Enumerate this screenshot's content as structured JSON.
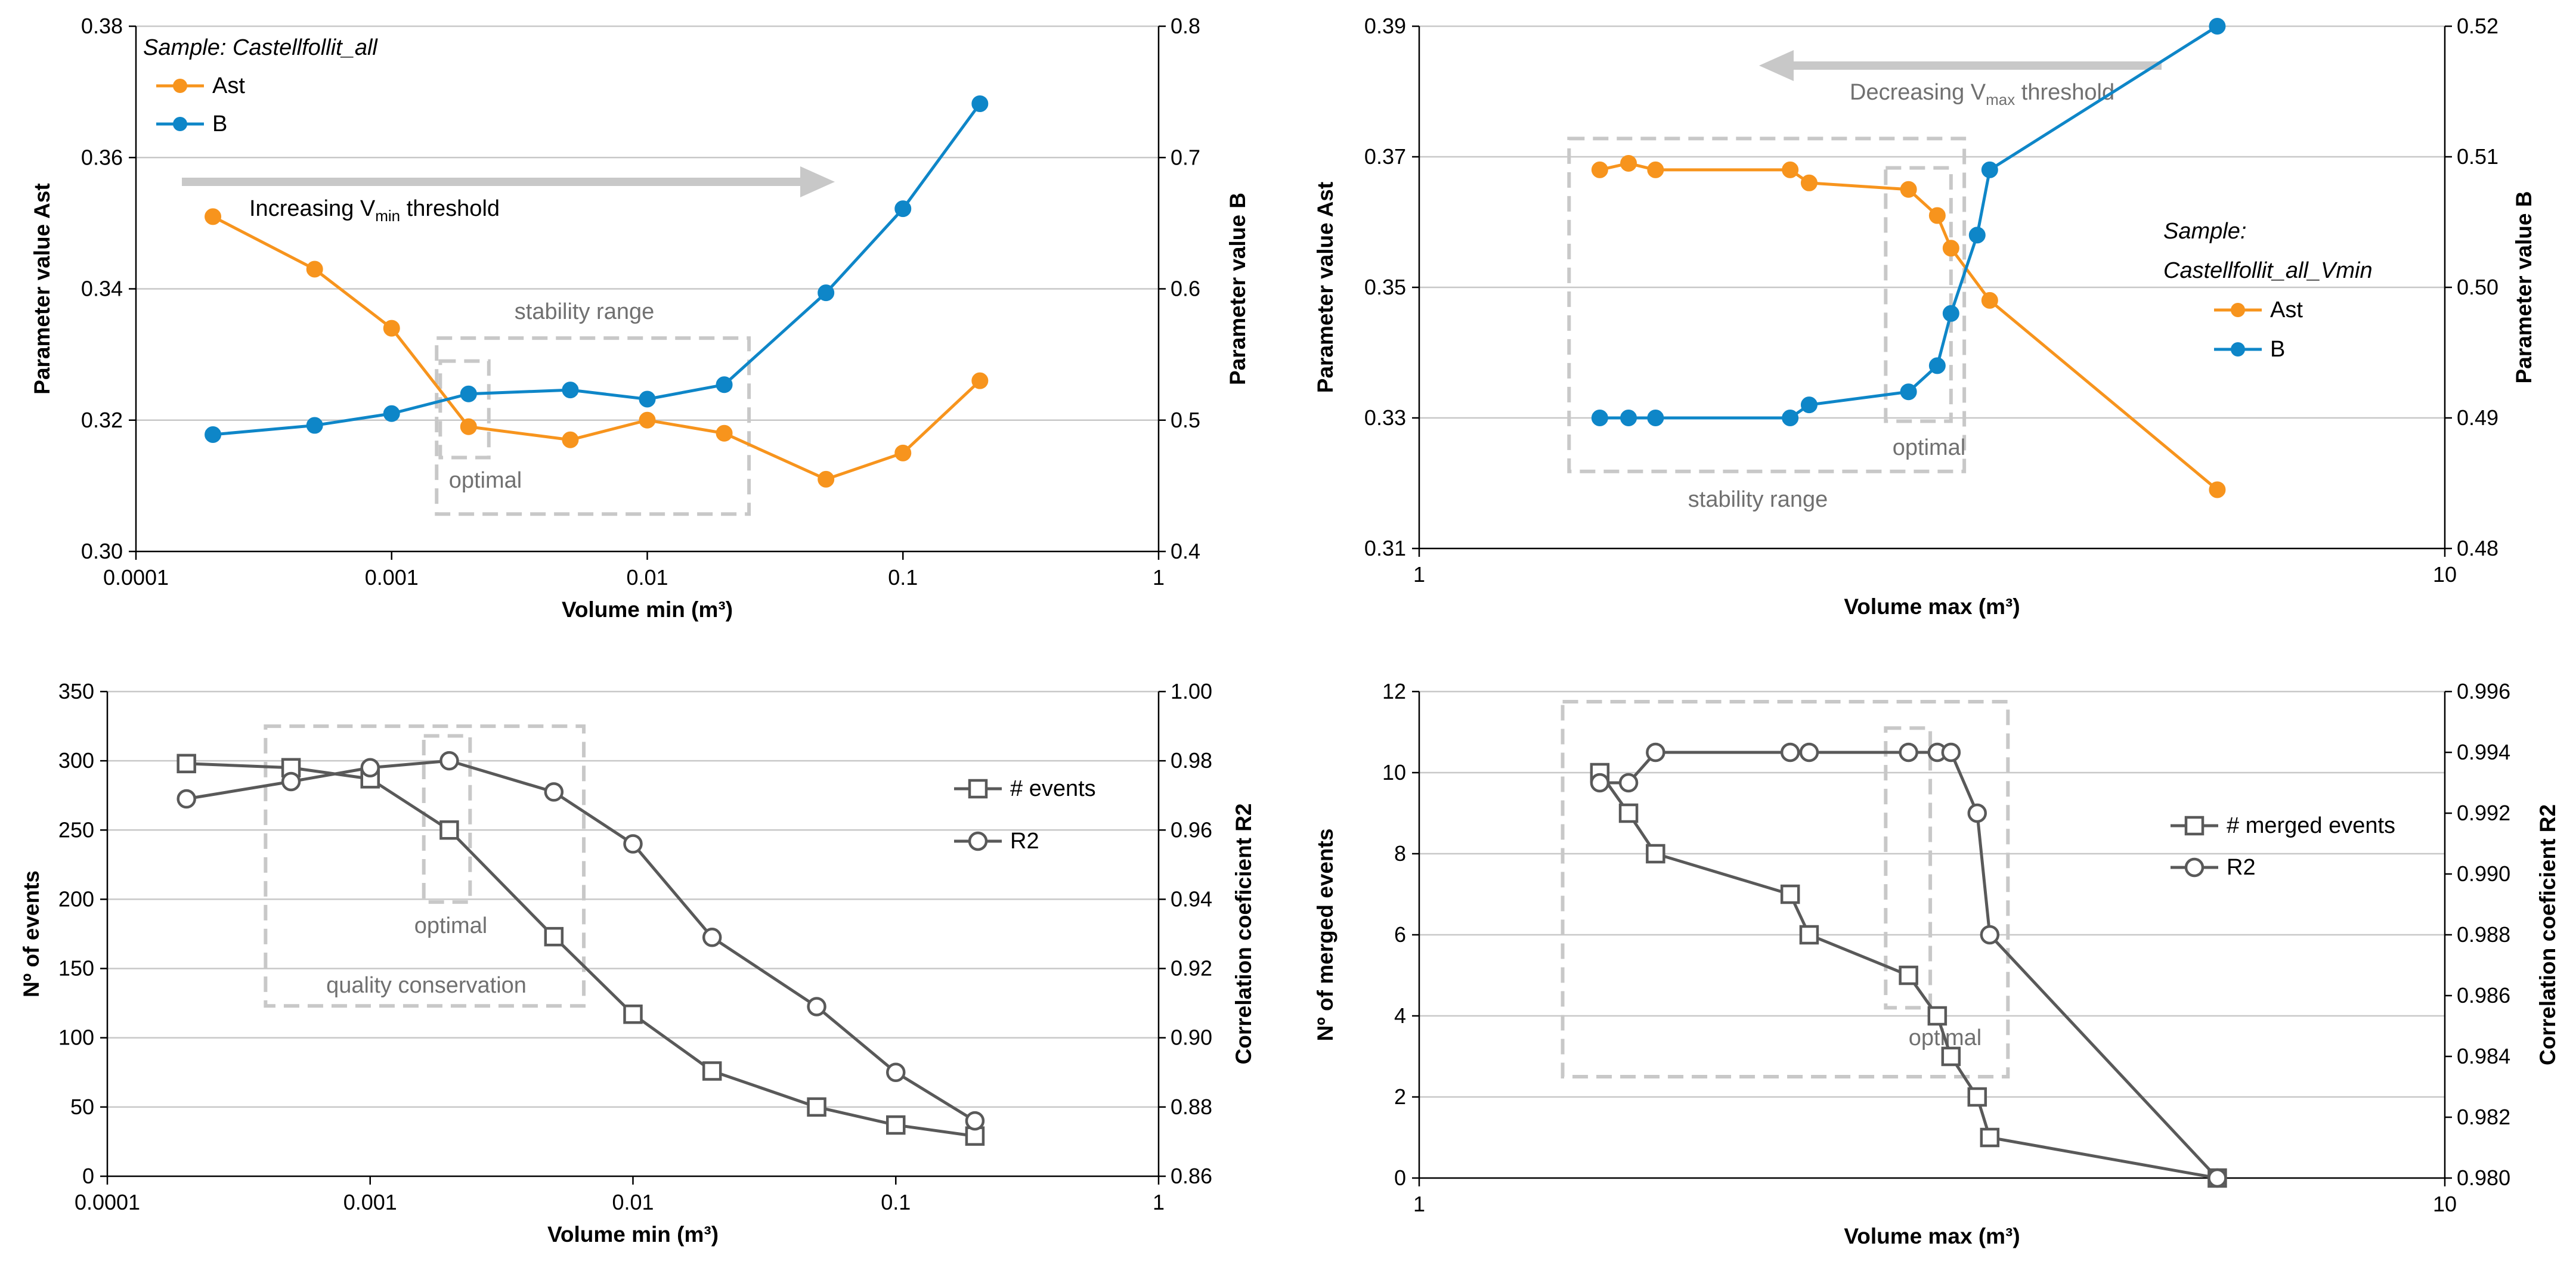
{
  "colors": {
    "ast": "#F7941D",
    "b": "#0E86C8",
    "gray_series": "#595959",
    "gridline": "#C8C8C8",
    "axis": "#000000",
    "annotation_box": "#C8C8C8",
    "annotation_text": "#707070",
    "arrow": "#C8C8C8"
  },
  "chart_data": [
    {
      "id": "top-left",
      "type": "line",
      "x_scale": "log",
      "xlim": [
        0.0001,
        1
      ],
      "x_ticks": [
        0.0001,
        0.001,
        0.01,
        0.1,
        1
      ],
      "x_tick_labels": [
        "0.0001",
        "0.001",
        "0.01",
        "0.1",
        "1"
      ],
      "xlabel": "Volume min (m³)",
      "y_left": {
        "label": "Parameter value Ast",
        "lim": [
          0.3,
          0.38
        ],
        "ticks": [
          0.3,
          0.32,
          0.34,
          0.36,
          0.38
        ],
        "tick_labels": [
          "0.30",
          "0.32",
          "0.34",
          "0.36",
          "0.38"
        ]
      },
      "y_right": {
        "label": "Parameter value B",
        "lim": [
          0.4,
          0.8
        ],
        "ticks": [
          0.4,
          0.5,
          0.6,
          0.7,
          0.8
        ],
        "tick_labels": [
          "0.4",
          "0.5",
          "0.6",
          "0.7",
          "0.8"
        ]
      },
      "gridlines": true,
      "series": [
        {
          "name": "Ast",
          "axis": "left",
          "color": "ast",
          "marker": "filled-circle",
          "x": [
            0.0002,
            0.0005,
            0.001,
            0.002,
            0.005,
            0.01,
            0.02,
            0.05,
            0.1,
            0.2
          ],
          "y": [
            0.351,
            0.343,
            0.334,
            0.319,
            0.317,
            0.32,
            0.318,
            0.311,
            0.315,
            0.326
          ]
        },
        {
          "name": "B",
          "axis": "right",
          "color": "b",
          "marker": "filled-circle",
          "x": [
            0.0002,
            0.0005,
            0.001,
            0.002,
            0.005,
            0.01,
            0.02,
            0.05,
            0.1,
            0.2
          ],
          "y": [
            0.489,
            0.496,
            0.505,
            0.52,
            0.523,
            0.516,
            0.527,
            0.597,
            0.661,
            0.741
          ]
        }
      ],
      "legend": {
        "title": "Sample: Castellfollit_all",
        "placement": "top-left",
        "entries": [
          "Ast",
          "B"
        ]
      },
      "annotations": {
        "arrow": {
          "direction": "right",
          "text_pre": "Increasing V",
          "text_sub": "min",
          "text_post": " threshold"
        },
        "big_box": {
          "label": "stability range",
          "x_range": [
            0.0015,
            0.025
          ],
          "y_range": [
            0.3057,
            0.3325
          ]
        },
        "small_box": {
          "label": "optimal",
          "x_range": [
            0.00155,
            0.0024
          ],
          "y_range": [
            0.3143,
            0.329
          ]
        }
      }
    },
    {
      "id": "top-right",
      "type": "line",
      "x_scale": "log",
      "xlim": [
        1,
        10
      ],
      "x_ticks": [
        1,
        10
      ],
      "x_tick_labels": [
        "1",
        "10"
      ],
      "xlabel": "Volume max (m³)",
      "y_left": {
        "label": "Parameter value  Ast",
        "lim": [
          0.31,
          0.39
        ],
        "ticks": [
          0.31,
          0.33,
          0.35,
          0.37,
          0.39
        ],
        "tick_labels": [
          "0.31",
          "0.33",
          "0.35",
          "0.37",
          "0.39"
        ]
      },
      "y_right": {
        "label": "Parameter value  B",
        "lim": [
          0.48,
          0.52
        ],
        "ticks": [
          0.48,
          0.49,
          0.5,
          0.51,
          0.52
        ],
        "tick_labels": [
          "0.48",
          "0.49",
          "0.50",
          "0.51",
          "0.52"
        ]
      },
      "gridlines": true,
      "series": [
        {
          "name": "Ast",
          "axis": "left",
          "color": "ast",
          "marker": "filled-circle",
          "x": [
            1.5,
            1.6,
            1.7,
            2.3,
            2.4,
            3.0,
            3.2,
            3.3,
            3.6,
            6.0
          ],
          "y": [
            0.368,
            0.369,
            0.368,
            0.368,
            0.366,
            0.365,
            0.361,
            0.356,
            0.348,
            0.319
          ]
        },
        {
          "name": "B",
          "axis": "right",
          "color": "b",
          "marker": "filled-circle",
          "x": [
            1.5,
            1.6,
            1.7,
            2.3,
            2.4,
            3.0,
            3.2,
            3.3,
            3.5,
            3.6,
            6.0
          ],
          "y": [
            0.49,
            0.49,
            0.49,
            0.49,
            0.491,
            0.492,
            0.494,
            0.498,
            0.504,
            0.509,
            0.52
          ]
        }
      ],
      "legend": {
        "title_line1": "Sample:",
        "title_line2": "Castellfollit_all_Vmin",
        "placement": "center-right",
        "entries": [
          "Ast",
          "B"
        ]
      },
      "annotations": {
        "arrow": {
          "direction": "left",
          "text_pre": "Decreasing V",
          "text_sub": "max",
          "text_post": " threshold"
        },
        "big_box": {
          "label": "stability range",
          "x_range": [
            1.4,
            3.4
          ],
          "y_range": [
            0.3218,
            0.3728
          ]
        },
        "small_box": {
          "label": "optimal",
          "x_range": [
            2.85,
            3.3
          ],
          "y_range": [
            0.3295,
            0.3683
          ]
        }
      }
    },
    {
      "id": "bottom-left",
      "type": "line",
      "x_scale": "log",
      "xlim": [
        0.0001,
        1
      ],
      "x_ticks": [
        0.0001,
        0.001,
        0.01,
        0.1,
        1
      ],
      "x_tick_labels": [
        "0.0001",
        "0.001",
        "0.01",
        "0.1",
        "1"
      ],
      "xlabel": "Volume min (m³)",
      "y_left": {
        "label": "Nº of events",
        "lim": [
          0,
          350
        ],
        "ticks": [
          0,
          50,
          100,
          150,
          200,
          250,
          300,
          350
        ],
        "tick_labels": [
          "0",
          "50",
          "100",
          "150",
          "200",
          "250",
          "300",
          "350"
        ]
      },
      "y_right": {
        "label": "Correlation coeficient R2",
        "lim": [
          0.86,
          1.0
        ],
        "ticks": [
          0.86,
          0.88,
          0.9,
          0.92,
          0.94,
          0.96,
          0.98,
          1.0
        ],
        "tick_labels": [
          "0.86",
          "0.88",
          "0.90",
          "0.92",
          "0.94",
          "0.96",
          "0.98",
          "1.00"
        ]
      },
      "gridlines": true,
      "series": [
        {
          "name": "# events",
          "axis": "left",
          "color": "gray_series",
          "marker": "open-square",
          "x": [
            0.0002,
            0.0005,
            0.001,
            0.002,
            0.005,
            0.01,
            0.02,
            0.05,
            0.1,
            0.2
          ],
          "y": [
            298,
            295,
            287,
            250,
            173,
            117,
            76,
            50,
            37,
            29
          ]
        },
        {
          "name": "R2",
          "axis": "right",
          "color": "gray_series",
          "marker": "open-circle",
          "x": [
            0.0002,
            0.0005,
            0.001,
            0.002,
            0.005,
            0.01,
            0.02,
            0.05,
            0.1,
            0.2
          ],
          "y": [
            0.969,
            0.974,
            0.978,
            0.98,
            0.971,
            0.956,
            0.929,
            0.909,
            0.89,
            0.876
          ]
        }
      ],
      "legend": {
        "placement": "right",
        "entries": [
          "# events",
          "R2"
        ]
      },
      "annotations": {
        "big_box": {
          "label": "quality conservation",
          "x_range": [
            0.0004,
            0.0065
          ],
          "y_range": [
            123,
            325
          ]
        },
        "small_box": {
          "label": "optimal",
          "x_range": [
            0.0016,
            0.0024
          ],
          "y_range": [
            198,
            318
          ]
        }
      }
    },
    {
      "id": "bottom-right",
      "type": "line",
      "x_scale": "log",
      "xlim": [
        1,
        10
      ],
      "x_ticks": [
        1,
        10
      ],
      "x_tick_labels": [
        "1",
        "10"
      ],
      "xlabel": "Volume max (m³)",
      "y_left": {
        "label": "Nº of merged events",
        "lim": [
          0,
          12
        ],
        "ticks": [
          0,
          2,
          4,
          6,
          8,
          10,
          12
        ],
        "tick_labels": [
          "0",
          "2",
          "4",
          "6",
          "8",
          "10",
          "12"
        ]
      },
      "y_right": {
        "label": "Correlation coeficient R2",
        "lim": [
          0.98,
          0.996
        ],
        "ticks": [
          0.98,
          0.982,
          0.984,
          0.986,
          0.988,
          0.99,
          0.992,
          0.994,
          0.996
        ],
        "tick_labels": [
          "0.980",
          "0.982",
          "0.984",
          "0.986",
          "0.988",
          "0.990",
          "0.992",
          "0.994",
          "0.996"
        ]
      },
      "gridlines": true,
      "series": [
        {
          "name": "# merged events",
          "axis": "left",
          "color": "gray_series",
          "marker": "open-square",
          "x": [
            1.5,
            1.6,
            1.7,
            2.3,
            2.4,
            3.0,
            3.2,
            3.3,
            3.5,
            3.6,
            6.0
          ],
          "y": [
            10,
            9,
            8,
            7,
            6,
            5,
            4,
            3,
            2,
            1,
            0
          ]
        },
        {
          "name": "R2",
          "axis": "right",
          "color": "gray_series",
          "marker": "open-circle",
          "x": [
            1.5,
            1.6,
            1.7,
            2.3,
            2.4,
            3.0,
            3.2,
            3.3,
            3.5,
            3.6,
            6.0
          ],
          "y": [
            0.993,
            0.993,
            0.994,
            0.994,
            0.994,
            0.994,
            0.994,
            0.994,
            0.992,
            0.988,
            0.98
          ]
        }
      ],
      "legend": {
        "placement": "right",
        "entries": [
          "# merged events",
          "R2"
        ]
      },
      "annotations": {
        "big_box": {
          "label": "",
          "x_range": [
            1.38,
            3.75
          ],
          "y_range": [
            2.5,
            11.75
          ]
        },
        "small_box": {
          "label": "optimal",
          "x_range": [
            2.85,
            3.15
          ],
          "y_range": [
            4.2,
            11.1
          ]
        }
      }
    }
  ]
}
